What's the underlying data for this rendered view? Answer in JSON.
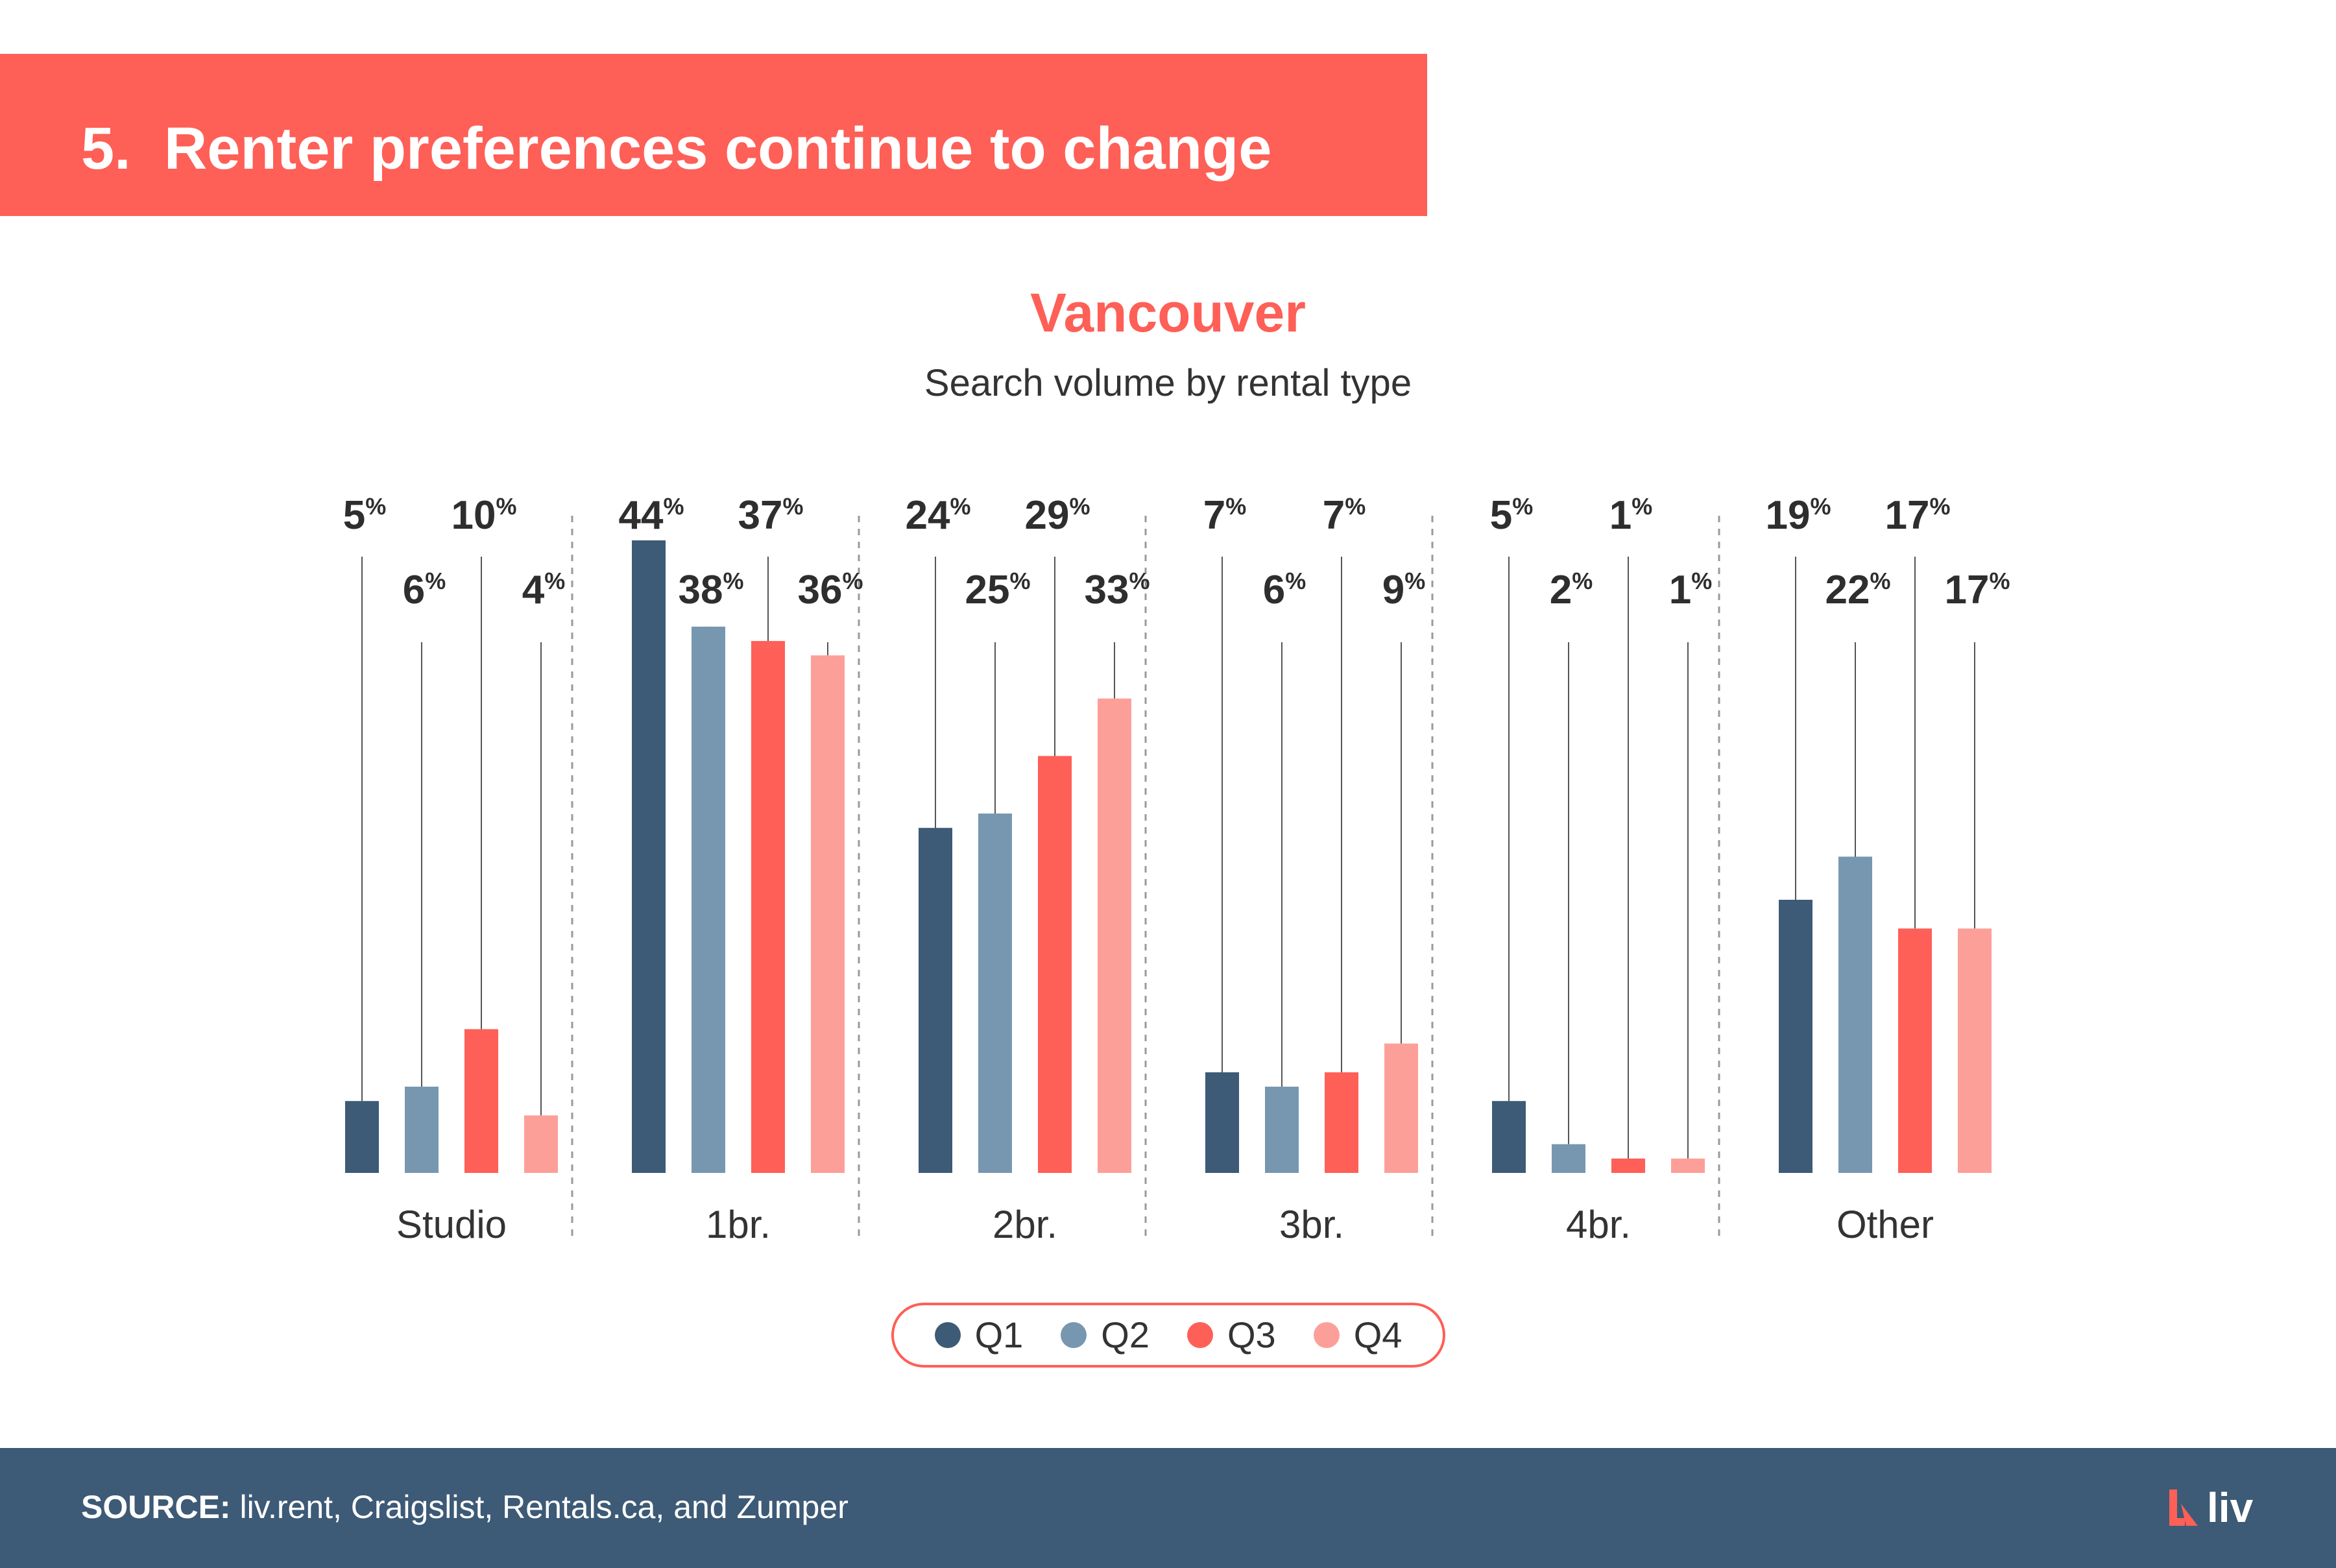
{
  "header": {
    "title": "5.  Renter preferences continue to change"
  },
  "colors": {
    "accent": "#fe5f57",
    "navy": "#3d5a76",
    "Q1": "#3d5a76",
    "Q2": "#7797b0",
    "Q3": "#fe5f57",
    "Q4": "#fd9f99"
  },
  "chart_data": {
    "type": "bar",
    "title": "Vancouver",
    "subtitle": "Search volume by rental type",
    "categories": [
      "Studio",
      "1br.",
      "2br.",
      "3br.",
      "4br.",
      "Other"
    ],
    "value_suffix": "%",
    "series": [
      {
        "name": "Q1",
        "color": "#3d5a76",
        "values": [
          5,
          44,
          24,
          7,
          5,
          19
        ]
      },
      {
        "name": "Q2",
        "color": "#7797b0",
        "values": [
          6,
          38,
          25,
          6,
          2,
          22
        ]
      },
      {
        "name": "Q3",
        "color": "#fe5f57",
        "values": [
          10,
          37,
          29,
          7,
          1,
          17
        ]
      },
      {
        "name": "Q4",
        "color": "#fd9f99",
        "values": [
          4,
          36,
          33,
          9,
          1,
          17
        ]
      }
    ],
    "ylim": [
      0,
      50
    ],
    "grid": false,
    "legend": "bottom-center"
  },
  "legend": {
    "items": [
      {
        "label": "Q1",
        "color": "#3d5a76"
      },
      {
        "label": "Q2",
        "color": "#7797b0"
      },
      {
        "label": "Q3",
        "color": "#fe5f57"
      },
      {
        "label": "Q4",
        "color": "#fd9f99"
      }
    ]
  },
  "footer": {
    "source_label": "SOURCE:",
    "source_text": " liv.rent, Craigslist, Rentals.ca, and Zumper",
    "brand": "liv",
    "brand_icon": "liv-logo-icon"
  }
}
